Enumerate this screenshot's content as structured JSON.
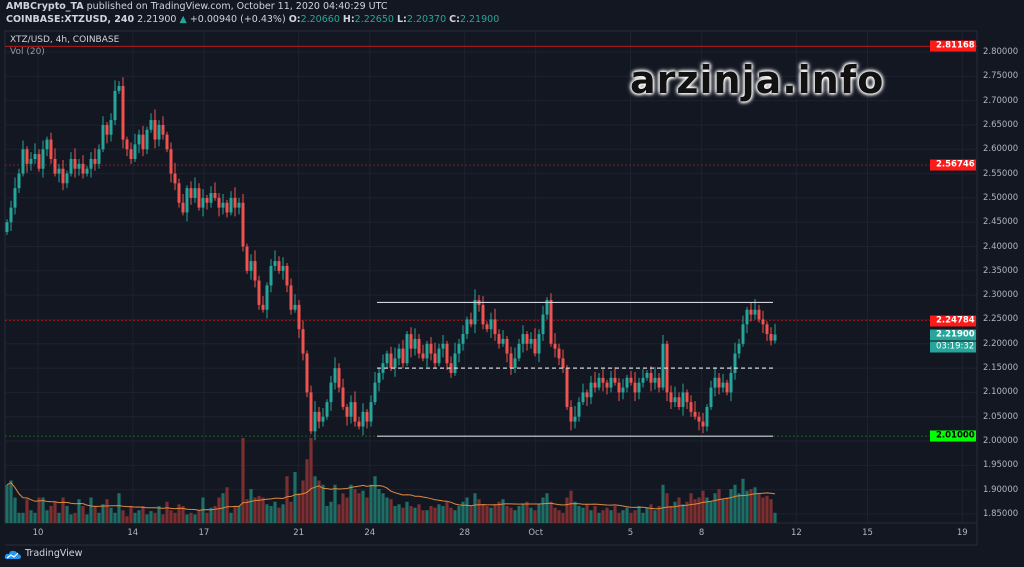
{
  "header": {
    "publisher": "AMBCrypto_TA",
    "published_text": "published on TradingView.com, October 11, 2020 04:40:29 UTC",
    "symbol": "COINBASE:XTZUSD, 240",
    "last": "2.21900",
    "change_arrow": "▲",
    "change": "+0.00940 (+0.43%)",
    "o_label": "O:",
    "o": "2.20660",
    "h_label": "H:",
    "h": "2.22650",
    "l_label": "L:",
    "l": "2.20370",
    "c_label": "C:",
    "c": "2.21900"
  },
  "legend": {
    "main": "XTZ/USD, 4h, COINBASE",
    "volume": "Vol (20)"
  },
  "colors": {
    "background": "#131722",
    "up": "#26a69a",
    "down": "#ef5350",
    "vol_up": "#1f6e66",
    "vol_down": "#7b2f31",
    "vol_ma": "#e08a3c",
    "grid": "#1e2230"
  },
  "price_axis": {
    "ticks": [
      "2.80000",
      "2.75000",
      "2.70000",
      "2.65000",
      "2.60000",
      "2.55000",
      "2.50000",
      "2.45000",
      "2.40000",
      "2.35000",
      "2.30000",
      "2.25000",
      "2.20000",
      "2.15000",
      "2.10000",
      "2.05000",
      "2.00000",
      "1.95000",
      "1.90000",
      "1.85000"
    ]
  },
  "time_axis": {
    "labels": [
      {
        "label": "10",
        "day": 0
      },
      {
        "label": "14",
        "day": 4
      },
      {
        "label": "17",
        "day": 7
      },
      {
        "label": "21",
        "day": 11
      },
      {
        "label": "24",
        "day": 14
      },
      {
        "label": "28",
        "day": 18
      },
      {
        "label": "Oct",
        "day": 21
      },
      {
        "label": "5",
        "day": 25
      },
      {
        "label": "8",
        "day": 28
      },
      {
        "label": "12",
        "day": 32
      },
      {
        "label": "15",
        "day": 35
      },
      {
        "label": "19",
        "day": 39
      }
    ]
  },
  "price_markers": [
    {
      "value": "2.81168",
      "price": 2.81168,
      "color": "#ff1a1a",
      "text_color": "#ffffff",
      "line": "solid"
    },
    {
      "value": "2.56746",
      "price": 2.56746,
      "color": "#ff1a1a",
      "text_color": "#ffffff",
      "line": "dashed"
    },
    {
      "value": "2.24784",
      "price": 2.24784,
      "color": "#ff1a1a",
      "text_color": "#ffffff",
      "line": "dashed"
    },
    {
      "value": "2.21900",
      "price": 2.219,
      "color": "#26a69a",
      "text_color": "#ffffff",
      "line": "none",
      "countdown": "03:19:32"
    },
    {
      "value": "2.01000",
      "price": 2.01,
      "color": "#00ff00",
      "text_color": "#000000",
      "line": "dashed-green"
    }
  ],
  "chart_data": {
    "type": "candlestick",
    "symbol": "XTZ/USD",
    "interval": "4h",
    "ylim": [
      1.83,
      2.83
    ],
    "grid": true,
    "close": [
      2.45,
      2.48,
      2.52,
      2.55,
      2.6,
      2.57,
      2.58,
      2.59,
      2.56,
      2.6,
      2.62,
      2.58,
      2.55,
      2.56,
      2.53,
      2.55,
      2.58,
      2.56,
      2.57,
      2.55,
      2.56,
      2.58,
      2.57,
      2.6,
      2.65,
      2.63,
      2.66,
      2.72,
      2.73,
      2.62,
      2.6,
      2.58,
      2.61,
      2.63,
      2.6,
      2.64,
      2.66,
      2.62,
      2.65,
      2.63,
      2.6,
      2.55,
      2.53,
      2.49,
      2.47,
      2.52,
      2.5,
      2.52,
      2.48,
      2.5,
      2.49,
      2.51,
      2.5,
      2.48,
      2.49,
      2.47,
      2.5,
      2.48,
      2.49,
      2.4,
      2.35,
      2.37,
      2.33,
      2.28,
      2.27,
      2.32,
      2.36,
      2.37,
      2.35,
      2.36,
      2.32,
      2.27,
      2.28,
      2.23,
      2.18,
      2.1,
      2.02,
      2.06,
      2.04,
      2.05,
      2.08,
      2.12,
      2.15,
      2.11,
      2.07,
      2.05,
      2.08,
      2.04,
      2.03,
      2.06,
      2.04,
      2.08,
      2.12,
      2.14,
      2.16,
      2.18,
      2.15,
      2.17,
      2.19,
      2.16,
      2.22,
      2.19,
      2.21,
      2.18,
      2.17,
      2.2,
      2.18,
      2.16,
      2.19,
      2.2,
      2.16,
      2.14,
      2.18,
      2.2,
      2.22,
      2.25,
      2.24,
      2.29,
      2.28,
      2.24,
      2.23,
      2.25,
      2.22,
      2.2,
      2.21,
      2.18,
      2.15,
      2.17,
      2.2,
      2.22,
      2.2,
      2.21,
      2.18,
      2.22,
      2.26,
      2.29,
      2.2,
      2.19,
      2.17,
      2.15,
      2.07,
      2.04,
      2.05,
      2.08,
      2.1,
      2.09,
      2.12,
      2.11,
      2.13,
      2.12,
      2.11,
      2.13,
      2.12,
      2.1,
      2.11,
      2.13,
      2.12,
      2.1,
      2.12,
      2.13,
      2.14,
      2.12,
      2.13,
      2.11,
      2.2,
      2.1,
      2.08,
      2.09,
      2.07,
      2.1,
      2.08,
      2.06,
      2.05,
      2.04,
      2.03,
      2.07,
      2.11,
      2.13,
      2.11,
      2.12,
      2.1,
      2.14,
      2.18,
      2.2,
      2.24,
      2.27,
      2.26,
      2.27,
      2.25,
      2.24,
      2.22,
      2.2066,
      2.219
    ],
    "volume": [
      45,
      50,
      30,
      12,
      12,
      28,
      15,
      12,
      30,
      30,
      15,
      20,
      25,
      12,
      30,
      20,
      10,
      12,
      28,
      20,
      10,
      30,
      20,
      12,
      22,
      28,
      18,
      12,
      35,
      15,
      8,
      20,
      12,
      15,
      20,
      10,
      14,
      12,
      20,
      10,
      25,
      15,
      12,
      22,
      20,
      10,
      12,
      10,
      15,
      30,
      12,
      18,
      20,
      30,
      35,
      42,
      12,
      20,
      20,
      100,
      28,
      40,
      30,
      32,
      30,
      22,
      20,
      25,
      18,
      22,
      55,
      25,
      60,
      35,
      50,
      75,
      100,
      55,
      50,
      45,
      20,
      25,
      45,
      22,
      35,
      30,
      45,
      40,
      35,
      38,
      30,
      45,
      55,
      40,
      35,
      30,
      28,
      20,
      22,
      18,
      25,
      20,
      18,
      22,
      15,
      15,
      20,
      18,
      22,
      20,
      25,
      18,
      15,
      20,
      25,
      30,
      20,
      35,
      28,
      22,
      20,
      18,
      22,
      25,
      28,
      20,
      18,
      15,
      20,
      22,
      25,
      18,
      15,
      22,
      30,
      35,
      25,
      18,
      15,
      12,
      30,
      38,
      25,
      20,
      18,
      22,
      15,
      20,
      12,
      15,
      18,
      15,
      20,
      12,
      15,
      18,
      12,
      15,
      20,
      12,
      18,
      22,
      15,
      20,
      45,
      35,
      20,
      25,
      30,
      22,
      25,
      35,
      28,
      30,
      38,
      30,
      25,
      35,
      40,
      28,
      30,
      40,
      45,
      35,
      52,
      38,
      40,
      42,
      35,
      30,
      32,
      28,
      12
    ],
    "volume_ma_period": 20,
    "range_lines": [
      {
        "price": 2.285,
        "style": "solid"
      },
      {
        "price": 2.15,
        "style": "dashed"
      },
      {
        "price": 2.01,
        "style": "solid"
      }
    ]
  },
  "branding": {
    "logo_text": "TradingView",
    "watermark": "arzinja.info"
  }
}
